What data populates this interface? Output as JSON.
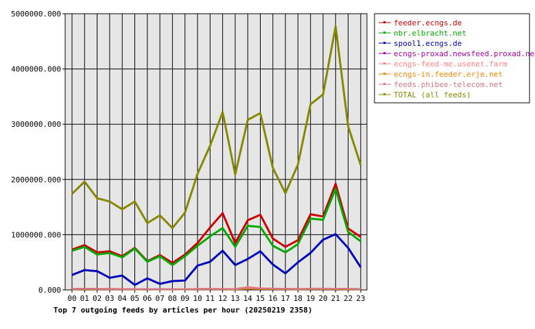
{
  "chart_data": {
    "type": "line",
    "title": "Top 7 outgoing feeds by articles per hour (20250219 2358)",
    "xlabel": "",
    "ylabel": "",
    "x": [
      "00",
      "01",
      "02",
      "03",
      "04",
      "05",
      "06",
      "07",
      "08",
      "09",
      "10",
      "11",
      "12",
      "13",
      "14",
      "15",
      "16",
      "17",
      "18",
      "19",
      "20",
      "21",
      "22",
      "23"
    ],
    "y_ticks": [
      "0.000",
      "1000000.000",
      "2000000.000",
      "3000000.000",
      "4000000.000",
      "5000000.000"
    ],
    "ylim": [
      0,
      5000000
    ],
    "grid": true,
    "legend_position": "right",
    "series": [
      {
        "name": "feeder.ecngs.de",
        "color": "#cc0000",
        "values": [
          730000,
          810000,
          680000,
          700000,
          610000,
          760000,
          520000,
          630000,
          490000,
          640000,
          850000,
          1130000,
          1390000,
          850000,
          1260000,
          1360000,
          930000,
          780000,
          900000,
          1370000,
          1330000,
          1920000,
          1110000,
          960000
        ]
      },
      {
        "name": "nbr.elbracht.net",
        "color": "#00aa00",
        "values": [
          710000,
          780000,
          640000,
          670000,
          590000,
          750000,
          510000,
          610000,
          450000,
          610000,
          800000,
          970000,
          1120000,
          780000,
          1160000,
          1140000,
          800000,
          680000,
          830000,
          1290000,
          1270000,
          1830000,
          1050000,
          880000
        ]
      },
      {
        "name": "spool1.ecngs.de",
        "color": "#0000bb",
        "values": [
          270000,
          360000,
          340000,
          220000,
          260000,
          90000,
          210000,
          110000,
          160000,
          170000,
          440000,
          510000,
          710000,
          450000,
          560000,
          700000,
          460000,
          300000,
          500000,
          670000,
          910000,
          1010000,
          760000,
          410000
        ]
      },
      {
        "name": "ecngs-proxad.newsfeed.proxad.net",
        "color": "#aa00aa",
        "values": [
          20000,
          25000,
          22000,
          20000,
          18000,
          15000,
          17000,
          15000,
          14000,
          14000,
          20000,
          22000,
          18000,
          20000,
          50000,
          30000,
          25000,
          22000,
          20000,
          25000,
          24000,
          25000,
          22000,
          18000
        ]
      },
      {
        "name": "ecngs-feed-me.usenet.farm",
        "color": "#ff8080",
        "values": [
          20000,
          24000,
          22000,
          22000,
          20000,
          18000,
          18000,
          16000,
          15000,
          15000,
          22000,
          24000,
          20000,
          22000,
          55000,
          35000,
          28000,
          24000,
          22000,
          28000,
          26000,
          26000,
          24000,
          20000
        ]
      },
      {
        "name": "ecngs-in.feeder.erje.net",
        "color": "#ee8800",
        "values": [
          10000,
          12000,
          11000,
          10000,
          9000,
          8000,
          9000,
          8000,
          7000,
          7000,
          10000,
          11000,
          9000,
          10000,
          20000,
          14000,
          12000,
          11000,
          10000,
          12000,
          12000,
          12000,
          11000,
          9000
        ]
      },
      {
        "name": "feeds.phibee-telecom.net",
        "color": "#cc7788",
        "values": [
          15000,
          18000,
          17000,
          16000,
          15000,
          12000,
          13000,
          12000,
          11000,
          11000,
          16000,
          17000,
          15000,
          16000,
          40000,
          24000,
          20000,
          18000,
          16000,
          20000,
          19000,
          20000,
          18000,
          15000
        ]
      },
      {
        "name": "TOTAL (all feeds)",
        "color": "#888800",
        "values": [
          1740000,
          1960000,
          1660000,
          1600000,
          1460000,
          1600000,
          1210000,
          1350000,
          1120000,
          1400000,
          2100000,
          2610000,
          3220000,
          2090000,
          3080000,
          3200000,
          2210000,
          1750000,
          2270000,
          3360000,
          3540000,
          4770000,
          2960000,
          2260000
        ]
      }
    ]
  }
}
